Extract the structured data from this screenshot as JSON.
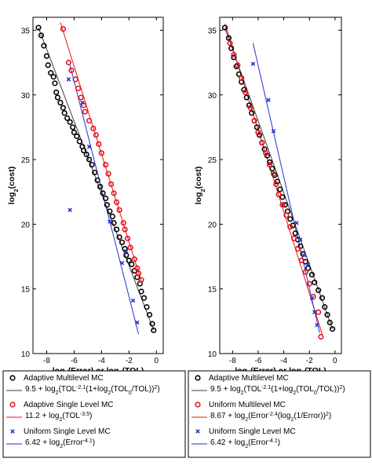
{
  "chart_data": [
    {
      "type": "scatter",
      "xlabel": "log2(Error) or log2(TOL)",
      "ylabel": "log2(cost)",
      "xlim": [
        -9,
        0.5
      ],
      "ylim": [
        10,
        36
      ],
      "x_ticks": [
        -8,
        -6,
        -4,
        -2,
        0
      ],
      "y_ticks": [
        10,
        15,
        20,
        25,
        30,
        35
      ],
      "grid": false,
      "legend_position": "below",
      "series": [
        {
          "name": "Adaptive Multilevel MC",
          "fit_label": "9.5 + log2(TOL^-2.1(1+log2(TOL0/TOL))^2)",
          "marker": "circle",
          "marker_color": "#000000",
          "fit_color": "#404040",
          "points": [
            [
              -8.6,
              35.2
            ],
            [
              -8.4,
              34.6
            ],
            [
              -8.2,
              33.8
            ],
            [
              -8.0,
              33.0
            ],
            [
              -7.9,
              32.3
            ],
            [
              -7.7,
              31.7
            ],
            [
              -7.5,
              31.4
            ],
            [
              -7.4,
              30.9
            ],
            [
              -7.3,
              30.2
            ],
            [
              -7.2,
              29.8
            ],
            [
              -7.0,
              29.4
            ],
            [
              -6.8,
              29.0
            ],
            [
              -6.7,
              28.6
            ],
            [
              -6.5,
              28.2
            ],
            [
              -6.3,
              27.9
            ],
            [
              -6.1,
              27.5
            ],
            [
              -6.0,
              27.1
            ],
            [
              -5.8,
              26.8
            ],
            [
              -5.6,
              26.4
            ],
            [
              -5.4,
              26.0
            ],
            [
              -5.3,
              25.7
            ],
            [
              -5.1,
              25.4
            ],
            [
              -4.9,
              25.0
            ],
            [
              -4.7,
              24.6
            ],
            [
              -4.5,
              24.0
            ],
            [
              -4.3,
              23.4
            ],
            [
              -4.1,
              22.9
            ],
            [
              -3.9,
              22.4
            ],
            [
              -3.7,
              22.0
            ],
            [
              -3.6,
              21.5
            ],
            [
              -3.4,
              21.0
            ],
            [
              -3.2,
              20.6
            ],
            [
              -3.1,
              20.1
            ],
            [
              -2.9,
              19.6
            ],
            [
              -2.7,
              19.0
            ],
            [
              -2.5,
              18.6
            ],
            [
              -2.3,
              18.1
            ],
            [
              -2.2,
              17.6
            ],
            [
              -2.0,
              17.2
            ],
            [
              -1.8,
              16.9
            ],
            [
              -1.6,
              16.4
            ],
            [
              -1.4,
              15.9
            ],
            [
              -1.2,
              15.4
            ],
            [
              -1.1,
              14.8
            ],
            [
              -0.9,
              14.3
            ],
            [
              -0.7,
              13.6
            ],
            [
              -0.5,
              13.0
            ],
            [
              -0.3,
              12.3
            ],
            [
              -0.2,
              11.8
            ]
          ],
          "fit_x": [
            -8.6,
            -0.2
          ],
          "fit_y": [
            35.2,
            11.8
          ]
        },
        {
          "name": "Adaptive Single Level MC",
          "fit_label": "11.2 + log2(TOL^-3.5)",
          "marker": "circle",
          "marker_color": "#e8121c",
          "fit_color": "#e8121c",
          "points": [
            [
              -6.8,
              35.1
            ],
            [
              -6.4,
              32.5
            ],
            [
              -6.2,
              31.9
            ],
            [
              -5.9,
              31.2
            ],
            [
              -5.7,
              30.5
            ],
            [
              -5.5,
              29.8
            ],
            [
              -5.3,
              29.2
            ],
            [
              -5.2,
              28.7
            ],
            [
              -4.9,
              28.0
            ],
            [
              -4.6,
              27.4
            ],
            [
              -4.4,
              26.9
            ],
            [
              -4.2,
              26.2
            ],
            [
              -4.0,
              25.5
            ],
            [
              -3.7,
              24.6
            ],
            [
              -3.5,
              23.9
            ],
            [
              -3.3,
              23.1
            ],
            [
              -3.1,
              22.4
            ],
            [
              -2.9,
              21.7
            ],
            [
              -2.7,
              21.1
            ],
            [
              -2.4,
              20.1
            ],
            [
              -2.3,
              19.6
            ],
            [
              -2.1,
              18.9
            ],
            [
              -1.9,
              18.2
            ],
            [
              -1.6,
              17.3
            ],
            [
              -1.4,
              16.6
            ],
            [
              -1.3,
              16.2
            ],
            [
              -1.1,
              15.7
            ]
          ],
          "fit_x": [
            -7.0,
            -1.1
          ],
          "fit_y": [
            35.6,
            15.6
          ]
        },
        {
          "name": "Uniform Single Level MC",
          "fit_label": "6.42 + log2(Error^-4.1)",
          "marker": "x",
          "marker_color": "#2233cc",
          "fit_color": "#2233cc",
          "points": [
            [
              -6.4,
              31.2
            ],
            [
              -5.4,
              29.4
            ],
            [
              -4.9,
              26.0
            ],
            [
              -6.3,
              21.1
            ],
            [
              -3.4,
              20.2
            ],
            [
              -2.2,
              17.9
            ],
            [
              -2.5,
              17.0
            ],
            [
              -1.7,
              14.1
            ],
            [
              -1.4,
              12.4
            ]
          ],
          "fit_x": [
            -6.3,
            -1.3
          ],
          "fit_y": [
            32.3,
            11.5
          ]
        }
      ]
    },
    {
      "type": "scatter",
      "xlabel": "log2(Error) or log2(TOL)",
      "ylabel": "log2(cost)",
      "xlim": [
        -9,
        0.5
      ],
      "ylim": [
        10,
        36
      ],
      "x_ticks": [
        -8,
        -6,
        -4,
        -2,
        0
      ],
      "y_ticks": [
        10,
        15,
        20,
        25,
        30,
        35
      ],
      "grid": false,
      "legend_position": "below",
      "series": [
        {
          "name": "Adaptive Multilevel MC",
          "fit_label": "9.5 + log2(TOL^-2.1(1+log2(TOL0/TOL))^2)",
          "marker": "circle",
          "marker_color": "#000000",
          "fit_color": "#404040",
          "points": [
            [
              -8.6,
              35.2
            ],
            [
              -8.3,
              34.4
            ],
            [
              -8.1,
              33.6
            ],
            [
              -7.9,
              32.9
            ],
            [
              -7.7,
              32.2
            ],
            [
              -7.5,
              31.6
            ],
            [
              -7.3,
              31.0
            ],
            [
              -7.1,
              30.4
            ],
            [
              -6.9,
              29.8
            ],
            [
              -6.7,
              29.2
            ],
            [
              -6.5,
              28.6
            ],
            [
              -6.3,
              28.0
            ],
            [
              -6.1,
              27.5
            ],
            [
              -5.9,
              26.9
            ],
            [
              -5.7,
              26.3
            ],
            [
              -5.5,
              25.8
            ],
            [
              -5.3,
              25.3
            ],
            [
              -5.1,
              24.8
            ],
            [
              -4.9,
              24.3
            ],
            [
              -4.7,
              23.8
            ],
            [
              -4.5,
              23.3
            ],
            [
              -4.3,
              22.7
            ],
            [
              -4.1,
              22.1
            ],
            [
              -3.9,
              21.5
            ],
            [
              -3.7,
              21.0
            ],
            [
              -3.5,
              20.4
            ],
            [
              -3.3,
              19.9
            ],
            [
              -3.1,
              19.3
            ],
            [
              -2.9,
              18.8
            ],
            [
              -2.7,
              18.3
            ],
            [
              -2.5,
              17.7
            ],
            [
              -2.3,
              17.1
            ],
            [
              -2.1,
              16.6
            ],
            [
              -1.8,
              16.1
            ],
            [
              -1.6,
              15.5
            ],
            [
              -1.3,
              14.9
            ],
            [
              -1.0,
              14.3
            ],
            [
              -0.8,
              13.6
            ],
            [
              -0.6,
              13.0
            ],
            [
              -0.4,
              12.4
            ],
            [
              -0.2,
              11.9
            ]
          ],
          "fit_x": [
            -8.6,
            -0.2
          ],
          "fit_y": [
            35.2,
            11.9
          ]
        },
        {
          "name": "Uniform Multilevel MC",
          "fit_label": "8.67 + log2(Error^-2.4(log2(1/Error))^2)",
          "marker": "circle",
          "marker_color": "#e8121c",
          "fit_color": "#e8121c",
          "points": [
            [
              -8.2,
              34.0
            ],
            [
              -7.9,
              33.1
            ],
            [
              -7.6,
              32.3
            ],
            [
              -7.3,
              31.3
            ],
            [
              -7.0,
              30.2
            ],
            [
              -6.6,
              29.0
            ],
            [
              -6.3,
              28.0
            ],
            [
              -6.0,
              27.1
            ],
            [
              -5.7,
              26.3
            ],
            [
              -5.4,
              25.5
            ],
            [
              -5.1,
              24.6
            ],
            [
              -4.8,
              23.9
            ],
            [
              -4.6,
              23.1
            ],
            [
              -4.4,
              22.3
            ],
            [
              -4.1,
              21.5
            ],
            [
              -3.8,
              20.7
            ],
            [
              -3.5,
              19.8
            ],
            [
              -3.2,
              18.9
            ],
            [
              -2.9,
              18.1
            ],
            [
              -2.6,
              17.2
            ],
            [
              -2.3,
              16.3
            ],
            [
              -2.0,
              15.4
            ],
            [
              -1.7,
              14.4
            ],
            [
              -1.3,
              13.2
            ],
            [
              -1.1,
              11.3
            ]
          ],
          "fit_x": [
            -8.6,
            -1.0
          ],
          "fit_y": [
            35.5,
            11.5
          ]
        },
        {
          "name": "Uniform Single Level MC",
          "fit_label": "6.42 + log2(Error^-4.1)",
          "marker": "x",
          "marker_color": "#2233cc",
          "fit_color": "#2233cc",
          "points": [
            [
              -6.4,
              32.4
            ],
            [
              -5.2,
              29.6
            ],
            [
              -4.8,
              27.2
            ],
            [
              -3.0,
              20.1
            ],
            [
              -2.7,
              18.8
            ],
            [
              -2.4,
              17.6
            ],
            [
              -2.1,
              16.9
            ],
            [
              -1.8,
              14.3
            ],
            [
              -1.6,
              13.2
            ],
            [
              -1.4,
              12.2
            ]
          ],
          "fit_x": [
            -6.4,
            -1.2
          ],
          "fit_y": [
            34.0,
            11.6
          ]
        }
      ]
    }
  ]
}
